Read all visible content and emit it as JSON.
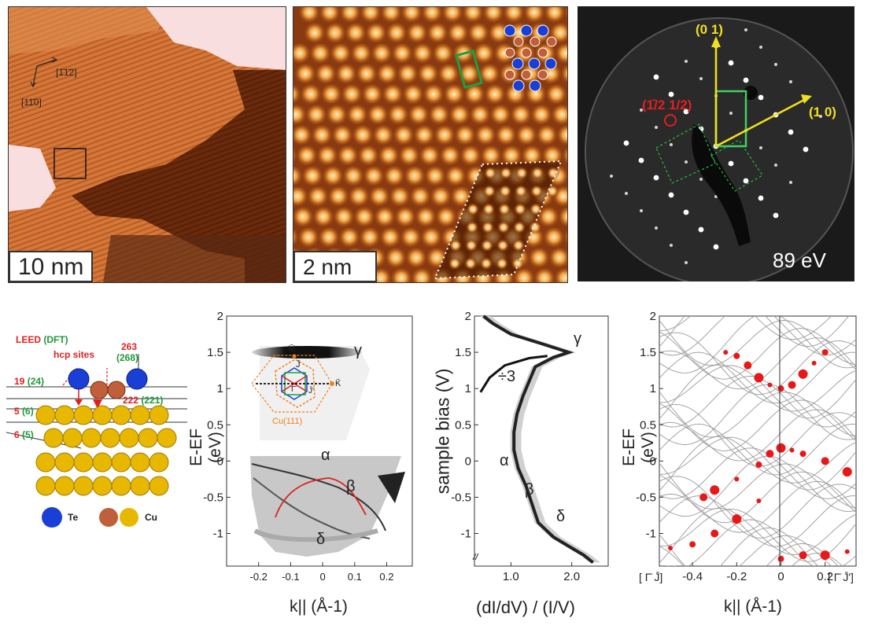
{
  "stm_large": {
    "scale_label": "10 nm",
    "dir_a": "[1̄1̄2]",
    "dir_b": "[11̄0]"
  },
  "stm_small": {
    "scale_label": "2 nm"
  },
  "leed": {
    "energy_label": "89 eV",
    "spot_01": "(0 1)",
    "spot_10": "(1 0)",
    "spot_half": "(1̄/2 1/2)"
  },
  "model": {
    "leed_label": "LEED",
    "dft_label": "(DFT)",
    "hcp_label": "hcp sites",
    "d1_leed": "19",
    "d1_dft": "(24)",
    "d2_leed": "5",
    "d2_dft": "(6)",
    "d3_leed": "6",
    "d3_dft": "(5)",
    "d4_leed": "263",
    "d4_dft": "(268)",
    "d5_leed": "222",
    "d5_dft": "(221)",
    "legend_te": "Te",
    "legend_cu": "Cu",
    "colors": {
      "te": "#1a3fd6",
      "cu_top": "#c0603a",
      "cu_bulk": "#e8b800",
      "leed": "#e02020",
      "dft": "#1e9a3a"
    }
  },
  "arpes": {
    "ylabel": "E-EF (eV)",
    "xlabel": "k|| (Å-1)",
    "yticks": [
      "2",
      "1.5",
      "1",
      "0.5",
      "0",
      "-0.5",
      "-1"
    ],
    "xticks": [
      "-0.2",
      "-0.1",
      "0",
      "0.1",
      "0.2"
    ],
    "labels": {
      "gamma": "γ",
      "alpha": "α",
      "beta": "β",
      "delta": "δ"
    },
    "inset": {
      "M": "M̄",
      "J": "J̄",
      "K": "K̄",
      "Jp": "J̄'",
      "G": "Γ̄",
      "cu": "Cu(111)"
    }
  },
  "sts": {
    "ylabel": "sample bias (V)",
    "xlabel": "(dI/dV) / (I/V)",
    "yticks": [
      "2",
      "1.5",
      "1",
      "0.5",
      "0",
      "-0.5",
      "-1"
    ],
    "xticks": [
      "1.0",
      "2.0"
    ],
    "div_label": "÷3",
    "labels": {
      "gamma": "γ",
      "alpha": "α",
      "beta": "β",
      "delta": "δ"
    }
  },
  "dft": {
    "ylabel": "E-EF (eV)",
    "xlabel": "k|| (Å-1)",
    "yticks": [
      "2",
      "1.5",
      "1",
      "0.5",
      "0",
      "-0.5",
      "-1"
    ],
    "xticks": [
      "-0.4",
      "-0.2",
      "0",
      "0.2"
    ],
    "left_path": "[ Γ̄ J̄]",
    "right_path": "[ Γ̄ J̄']"
  },
  "chart_data": [
    {
      "type": "line",
      "title": "",
      "xlabel": "(dI/dV) / (I/V)",
      "ylabel": "sample bias (V)",
      "xlim": [
        0.4,
        2.6
      ],
      "ylim": [
        -1.45,
        2.0
      ],
      "series": [
        {
          "values": [
            [
              2.35,
              -1.4
            ],
            [
              2.2,
              -1.3
            ],
            [
              2.0,
              -1.2
            ],
            [
              1.7,
              -1.05
            ],
            [
              1.45,
              -0.85
            ],
            [
              1.35,
              -0.6
            ],
            [
              1.25,
              -0.35
            ],
            [
              1.12,
              -0.1
            ],
            [
              1.05,
              0.15
            ],
            [
              1.05,
              0.4
            ],
            [
              1.1,
              0.65
            ],
            [
              1.2,
              0.9
            ],
            [
              1.3,
              1.1
            ],
            [
              1.4,
              1.3
            ],
            [
              1.7,
              1.43
            ],
            [
              1.95,
              1.5
            ],
            [
              1.5,
              1.62
            ],
            [
              1.0,
              1.75
            ],
            [
              0.7,
              1.9
            ],
            [
              0.55,
              2.0
            ]
          ]
        },
        {
          "values": [
            [
              0.5,
              0.95
            ],
            [
              0.65,
              1.15
            ],
            [
              0.9,
              1.32
            ],
            [
              1.3,
              1.42
            ],
            [
              1.6,
              1.45
            ]
          ]
        }
      ]
    },
    {
      "type": "scatter",
      "title": "",
      "xlabel": "k|| (Å-1)",
      "ylabel": "E-EF (eV)",
      "xlim": [
        -0.55,
        0.34
      ],
      "ylim": [
        -1.45,
        2.0
      ],
      "series": [
        {
          "values": [
            [
              -0.25,
              1.5
            ],
            [
              -0.2,
              1.45
            ],
            [
              -0.15,
              1.32
            ],
            [
              -0.1,
              1.15
            ],
            [
              -0.05,
              1.05
            ],
            [
              0.0,
              1.0
            ],
            [
              0.05,
              1.05
            ],
            [
              0.1,
              1.2
            ],
            [
              0.15,
              1.35
            ],
            [
              0.2,
              1.5
            ],
            [
              -0.35,
              -0.5
            ],
            [
              -0.3,
              -0.4
            ],
            [
              -0.2,
              -0.25
            ],
            [
              -0.1,
              -0.05
            ],
            [
              -0.05,
              0.1
            ],
            [
              0.0,
              0.18
            ],
            [
              0.05,
              0.15
            ],
            [
              0.1,
              0.1
            ],
            [
              0.2,
              0.0
            ],
            [
              0.3,
              -0.15
            ],
            [
              -0.5,
              -1.2
            ],
            [
              -0.4,
              -1.15
            ],
            [
              -0.3,
              -1.0
            ],
            [
              -0.2,
              -0.8
            ],
            [
              -0.1,
              -0.55
            ],
            [
              0.0,
              -1.35
            ],
            [
              0.1,
              -1.3
            ],
            [
              0.2,
              -1.3
            ],
            [
              0.3,
              -1.25
            ]
          ]
        }
      ]
    }
  ]
}
